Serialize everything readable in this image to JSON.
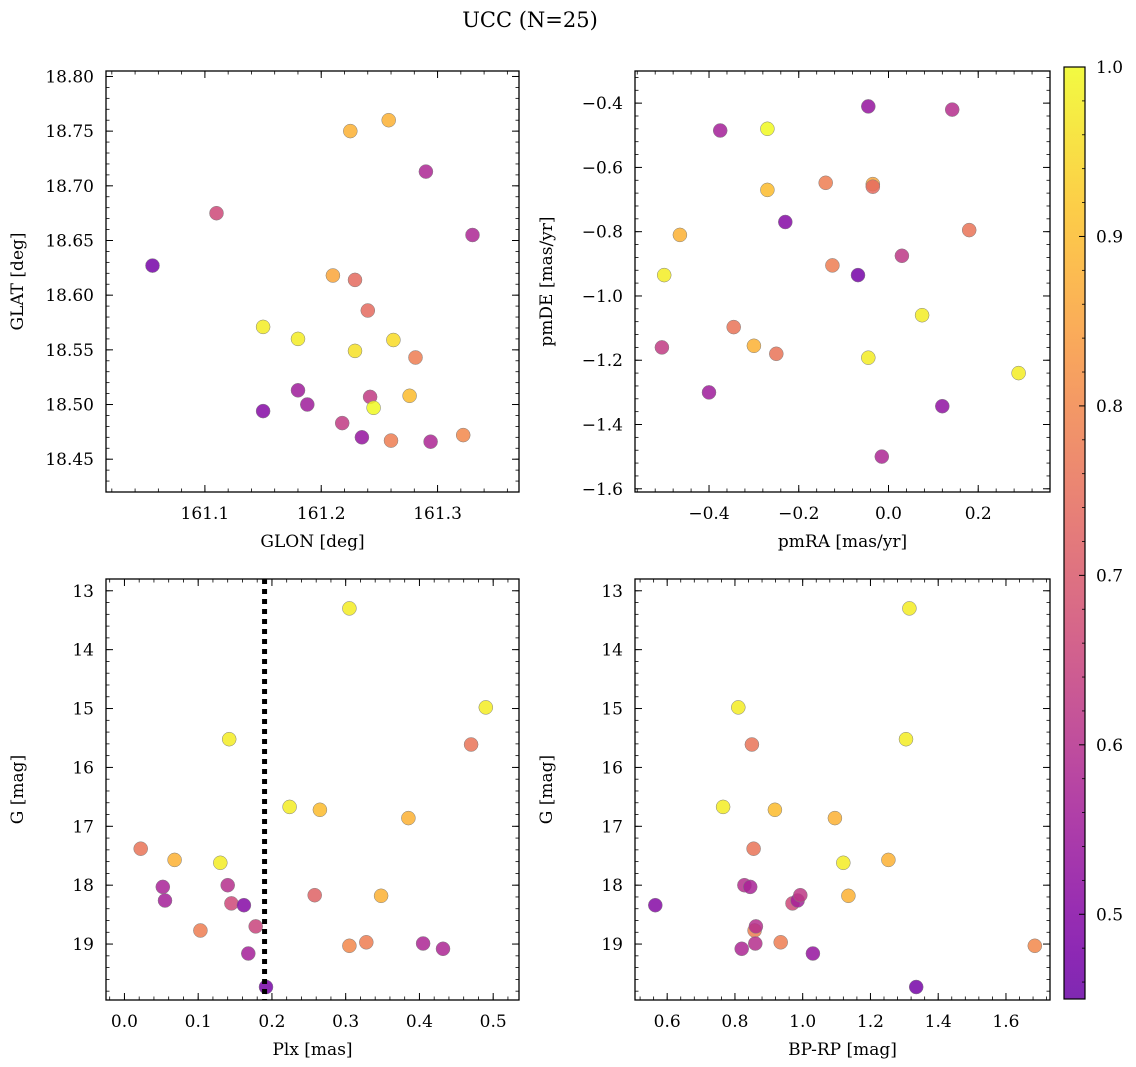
{
  "figure": {
    "title": "UCC (N=25)"
  },
  "colorbar": {
    "min": 0.45,
    "max": 1.0,
    "ticks": [
      0.5,
      0.6,
      0.7,
      0.8,
      0.9,
      1.0
    ],
    "tick_labels": [
      "0.5",
      "0.6",
      "0.7",
      "0.8",
      "0.9",
      "1.0"
    ],
    "colormap": "plasma"
  },
  "chart_data": [
    {
      "type": "scatter",
      "id": "sky",
      "title": "",
      "xlabel": "GLON [deg]",
      "ylabel": "GLAT [deg]",
      "xlim": [
        161.015,
        161.37
      ],
      "ylim": [
        18.42,
        18.805
      ],
      "yinvert": false,
      "xticks": [
        161.1,
        161.2,
        161.3
      ],
      "xtick_labels": [
        "161.1",
        "161.2",
        "161.3"
      ],
      "yticks": [
        18.45,
        18.5,
        18.55,
        18.6,
        18.65,
        18.7,
        18.75,
        18.8
      ],
      "ytick_labels": [
        "18.45",
        "18.50",
        "18.55",
        "18.60",
        "18.65",
        "18.70",
        "18.75",
        "18.80"
      ],
      "points": [
        {
          "x": 161.055,
          "y": 18.627,
          "c": 0.47
        },
        {
          "x": 161.11,
          "y": 18.675,
          "c": 0.66
        },
        {
          "x": 161.15,
          "y": 18.571,
          "c": 0.98
        },
        {
          "x": 161.15,
          "y": 18.494,
          "c": 0.5
        },
        {
          "x": 161.18,
          "y": 18.56,
          "c": 0.98
        },
        {
          "x": 161.18,
          "y": 18.513,
          "c": 0.55
        },
        {
          "x": 161.188,
          "y": 18.5,
          "c": 0.55
        },
        {
          "x": 161.21,
          "y": 18.618,
          "c": 0.86
        },
        {
          "x": 161.218,
          "y": 18.483,
          "c": 0.63
        },
        {
          "x": 161.225,
          "y": 18.75,
          "c": 0.88
        },
        {
          "x": 161.229,
          "y": 18.549,
          "c": 0.96
        },
        {
          "x": 161.229,
          "y": 18.614,
          "c": 0.74
        },
        {
          "x": 161.235,
          "y": 18.47,
          "c": 0.53
        },
        {
          "x": 161.24,
          "y": 18.586,
          "c": 0.74
        },
        {
          "x": 161.242,
          "y": 18.507,
          "c": 0.63
        },
        {
          "x": 161.245,
          "y": 18.497,
          "c": 1.0
        },
        {
          "x": 161.258,
          "y": 18.76,
          "c": 0.88
        },
        {
          "x": 161.26,
          "y": 18.467,
          "c": 0.78
        },
        {
          "x": 161.262,
          "y": 18.559,
          "c": 0.95
        },
        {
          "x": 161.276,
          "y": 18.508,
          "c": 0.9
        },
        {
          "x": 161.281,
          "y": 18.543,
          "c": 0.78
        },
        {
          "x": 161.29,
          "y": 18.713,
          "c": 0.58
        },
        {
          "x": 161.294,
          "y": 18.466,
          "c": 0.58
        },
        {
          "x": 161.322,
          "y": 18.472,
          "c": 0.8
        },
        {
          "x": 161.33,
          "y": 18.655,
          "c": 0.58
        }
      ]
    },
    {
      "type": "scatter",
      "id": "pm",
      "title": "",
      "xlabel": "pmRA [mas/yr]",
      "ylabel": "pmDE [mas/yr]",
      "xlim": [
        -0.565,
        0.36
      ],
      "ylim": [
        -1.61,
        -0.3
      ],
      "yinvert": false,
      "xticks": [
        -0.4,
        -0.2,
        0.0,
        0.2
      ],
      "xtick_labels": [
        "−0.4",
        "−0.2",
        "0.0",
        "0.2"
      ],
      "yticks": [
        -1.6,
        -1.4,
        -1.2,
        -1.0,
        -0.8,
        -0.6,
        -0.4
      ],
      "ytick_labels": [
        "−1.6",
        "−1.4",
        "−1.2",
        "−1.0",
        "−0.8",
        "−0.6",
        "−0.4"
      ],
      "points": [
        {
          "x": -0.5,
          "y": -0.935,
          "c": 0.98
        },
        {
          "x": -0.505,
          "y": -1.16,
          "c": 0.63
        },
        {
          "x": -0.465,
          "y": -0.81,
          "c": 0.88
        },
        {
          "x": -0.4,
          "y": -1.3,
          "c": 0.55
        },
        {
          "x": -0.375,
          "y": -0.485,
          "c": 0.56
        },
        {
          "x": -0.345,
          "y": -1.097,
          "c": 0.76
        },
        {
          "x": -0.3,
          "y": -1.155,
          "c": 0.88
        },
        {
          "x": -0.27,
          "y": -0.48,
          "c": 1.0
        },
        {
          "x": -0.27,
          "y": -0.67,
          "c": 0.9
        },
        {
          "x": -0.25,
          "y": -1.18,
          "c": 0.76
        },
        {
          "x": -0.23,
          "y": -0.77,
          "c": 0.5
        },
        {
          "x": -0.14,
          "y": -0.648,
          "c": 0.78
        },
        {
          "x": -0.125,
          "y": -0.905,
          "c": 0.78
        },
        {
          "x": -0.068,
          "y": -0.935,
          "c": 0.47
        },
        {
          "x": -0.045,
          "y": -0.41,
          "c": 0.53
        },
        {
          "x": -0.045,
          "y": -1.192,
          "c": 0.98
        },
        {
          "x": -0.035,
          "y": -0.652,
          "c": 0.86
        },
        {
          "x": -0.035,
          "y": -0.66,
          "c": 0.74
        },
        {
          "x": -0.015,
          "y": -1.5,
          "c": 0.58
        },
        {
          "x": 0.03,
          "y": -0.875,
          "c": 0.62
        },
        {
          "x": 0.075,
          "y": -1.06,
          "c": 0.98
        },
        {
          "x": 0.12,
          "y": -1.343,
          "c": 0.52
        },
        {
          "x": 0.142,
          "y": -0.42,
          "c": 0.6
        },
        {
          "x": 0.18,
          "y": -0.795,
          "c": 0.76
        },
        {
          "x": 0.29,
          "y": -1.24,
          "c": 0.98
        }
      ]
    },
    {
      "type": "scatter",
      "id": "plx",
      "title": "",
      "xlabel": "Plx [mas]",
      "ylabel": "G [mag]",
      "xlim": [
        -0.025,
        0.535
      ],
      "ylim": [
        12.8,
        19.95
      ],
      "yinvert": true,
      "xticks": [
        0.0,
        0.1,
        0.2,
        0.3,
        0.4,
        0.5
      ],
      "xtick_labels": [
        "0.0",
        "0.1",
        "0.2",
        "0.3",
        "0.4",
        "0.5"
      ],
      "yticks": [
        13,
        14,
        15,
        16,
        17,
        18,
        19
      ],
      "ytick_labels": [
        "13",
        "14",
        "15",
        "16",
        "17",
        "18",
        "19"
      ],
      "vline": {
        "x": 0.19
      },
      "points": [
        {
          "x": 0.022,
          "y": 17.38,
          "c": 0.76
        },
        {
          "x": 0.052,
          "y": 18.03,
          "c": 0.57
        },
        {
          "x": 0.055,
          "y": 18.26,
          "c": 0.56
        },
        {
          "x": 0.068,
          "y": 17.57,
          "c": 0.88
        },
        {
          "x": 0.103,
          "y": 18.77,
          "c": 0.78
        },
        {
          "x": 0.13,
          "y": 17.62,
          "c": 0.98
        },
        {
          "x": 0.14,
          "y": 18.0,
          "c": 0.6
        },
        {
          "x": 0.142,
          "y": 15.52,
          "c": 0.98
        },
        {
          "x": 0.145,
          "y": 18.31,
          "c": 0.66
        },
        {
          "x": 0.162,
          "y": 18.34,
          "c": 0.5
        },
        {
          "x": 0.168,
          "y": 19.16,
          "c": 0.56
        },
        {
          "x": 0.178,
          "y": 18.7,
          "c": 0.65
        },
        {
          "x": 0.192,
          "y": 19.73,
          "c": 0.47
        },
        {
          "x": 0.224,
          "y": 16.67,
          "c": 0.98
        },
        {
          "x": 0.258,
          "y": 18.17,
          "c": 0.72
        },
        {
          "x": 0.265,
          "y": 16.72,
          "c": 0.9
        },
        {
          "x": 0.305,
          "y": 13.3,
          "c": 0.98
        },
        {
          "x": 0.305,
          "y": 19.03,
          "c": 0.8
        },
        {
          "x": 0.328,
          "y": 18.97,
          "c": 0.78
        },
        {
          "x": 0.348,
          "y": 18.18,
          "c": 0.88
        },
        {
          "x": 0.385,
          "y": 16.86,
          "c": 0.88
        },
        {
          "x": 0.405,
          "y": 18.99,
          "c": 0.58
        },
        {
          "x": 0.432,
          "y": 19.08,
          "c": 0.58
        },
        {
          "x": 0.47,
          "y": 15.61,
          "c": 0.76
        },
        {
          "x": 0.49,
          "y": 14.98,
          "c": 0.98
        }
      ]
    },
    {
      "type": "scatter",
      "id": "cmd",
      "title": "",
      "xlabel": "BP-RP [mag]",
      "ylabel": "G [mag]",
      "xlim": [
        0.505,
        1.73
      ],
      "ylim": [
        12.8,
        19.95
      ],
      "yinvert": true,
      "xticks": [
        0.6,
        0.8,
        1.0,
        1.2,
        1.4,
        1.6
      ],
      "xtick_labels": [
        "0.6",
        "0.8",
        "1.0",
        "1.2",
        "1.4",
        "1.6"
      ],
      "yticks": [
        13,
        14,
        15,
        16,
        17,
        18,
        19
      ],
      "ytick_labels": [
        "13",
        "14",
        "15",
        "16",
        "17",
        "18",
        "19"
      ],
      "points": [
        {
          "x": 0.565,
          "y": 18.34,
          "c": 0.5
        },
        {
          "x": 0.765,
          "y": 16.67,
          "c": 0.98
        },
        {
          "x": 0.81,
          "y": 14.98,
          "c": 0.98
        },
        {
          "x": 0.82,
          "y": 19.08,
          "c": 0.58
        },
        {
          "x": 0.828,
          "y": 18.0,
          "c": 0.6
        },
        {
          "x": 0.845,
          "y": 18.03,
          "c": 0.57
        },
        {
          "x": 0.85,
          "y": 15.61,
          "c": 0.76
        },
        {
          "x": 0.855,
          "y": 17.38,
          "c": 0.76
        },
        {
          "x": 0.858,
          "y": 18.77,
          "c": 0.78
        },
        {
          "x": 0.86,
          "y": 18.99,
          "c": 0.6
        },
        {
          "x": 0.862,
          "y": 18.7,
          "c": 0.6
        },
        {
          "x": 0.918,
          "y": 16.72,
          "c": 0.9
        },
        {
          "x": 0.935,
          "y": 18.97,
          "c": 0.78
        },
        {
          "x": 0.97,
          "y": 18.31,
          "c": 0.66
        },
        {
          "x": 0.985,
          "y": 18.26,
          "c": 0.56
        },
        {
          "x": 0.993,
          "y": 18.17,
          "c": 0.62
        },
        {
          "x": 1.03,
          "y": 19.16,
          "c": 0.53
        },
        {
          "x": 1.095,
          "y": 16.86,
          "c": 0.88
        },
        {
          "x": 1.12,
          "y": 17.62,
          "c": 0.98
        },
        {
          "x": 1.135,
          "y": 18.18,
          "c": 0.88
        },
        {
          "x": 1.253,
          "y": 17.57,
          "c": 0.88
        },
        {
          "x": 1.305,
          "y": 15.52,
          "c": 0.98
        },
        {
          "x": 1.315,
          "y": 13.3,
          "c": 0.98
        },
        {
          "x": 1.335,
          "y": 19.73,
          "c": 0.47
        },
        {
          "x": 1.685,
          "y": 19.03,
          "c": 0.8
        }
      ]
    }
  ]
}
